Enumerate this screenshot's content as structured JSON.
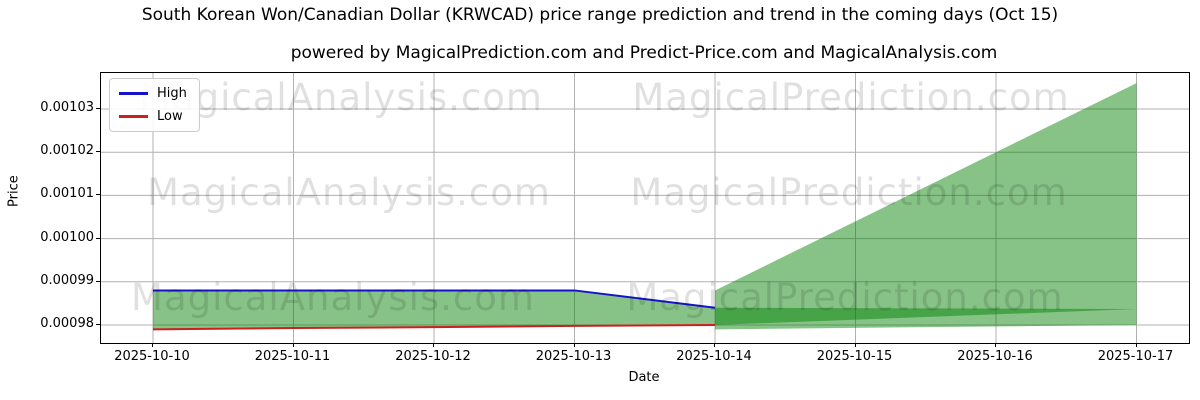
{
  "figure": {
    "title": "South Korean Won/Canadian Dollar (KRWCAD) price range prediction and trend in the coming days (Oct 15)",
    "subtitle": "powered by MagicalPrediction.com and Predict-Price.com and MagicalAnalysis.com"
  },
  "watermark": {
    "left_text": "MagicalAnalysis.com",
    "right_text": "MagicalPrediction.com"
  },
  "legend": {
    "items": [
      {
        "label": "High",
        "color": "#1414cc"
      },
      {
        "label": "Low",
        "color": "#cc2020"
      }
    ]
  },
  "axes": {
    "x_label": "Date",
    "y_label": "Price",
    "x_ticks": [
      "2025-10-10",
      "2025-10-11",
      "2025-10-12",
      "2025-10-13",
      "2025-10-14",
      "2025-10-15",
      "2025-10-16",
      "2025-10-17"
    ],
    "y_ticks": [
      "0.00098",
      "0.00099",
      "0.00100",
      "0.00101",
      "0.00102",
      "0.00103"
    ],
    "grid_color": "#b0b0b0"
  },
  "chart_data": {
    "type": "line",
    "title": "South Korean Won/Canadian Dollar (KRWCAD) price range prediction and trend in the coming days (Oct 15)",
    "xlabel": "Date",
    "ylabel": "Price",
    "grid": true,
    "legend_position": "upper left",
    "ylim": [
      0.000976,
      0.001038
    ],
    "x": [
      "2025-10-10",
      "2025-10-11",
      "2025-10-12",
      "2025-10-13",
      "2025-10-14",
      "2025-10-15",
      "2025-10-16",
      "2025-10-17"
    ],
    "series": [
      {
        "name": "High",
        "color": "#1414cc",
        "width": 2,
        "values": [
          0.000988,
          0.000988,
          0.000988,
          0.000988,
          0.000984,
          null,
          null,
          null
        ]
      },
      {
        "name": "Low",
        "color": "#cc2020",
        "width": 2,
        "values": [
          0.000979,
          0.0009793,
          0.0009795,
          0.0009798,
          0.00098,
          null,
          null,
          null
        ]
      }
    ],
    "bands": [
      {
        "name": "historical-high-low-range",
        "color": "#008000",
        "opacity": 0.47,
        "x": [
          "2025-10-10",
          "2025-10-11",
          "2025-10-12",
          "2025-10-13",
          "2025-10-14"
        ],
        "upper": [
          0.000988,
          0.000988,
          0.000988,
          0.000988,
          0.000984
        ],
        "lower": [
          0.000979,
          0.0009793,
          0.0009795,
          0.0009798,
          0.00098
        ]
      },
      {
        "name": "prediction-range-fan",
        "color": "#008000",
        "opacity": 0.47,
        "x": [
          "2025-10-14",
          "2025-10-17"
        ],
        "upper": [
          0.000988,
          0.001036
        ],
        "lower": [
          0.000979,
          0.00098
        ]
      },
      {
        "name": "prediction-trend-band",
        "color": "#008000",
        "opacity": 0.47,
        "x": [
          "2025-10-14",
          "2025-10-17"
        ],
        "upper": [
          0.000984,
          0.0009837
        ],
        "lower": [
          0.00098,
          0.0009837
        ]
      }
    ]
  }
}
